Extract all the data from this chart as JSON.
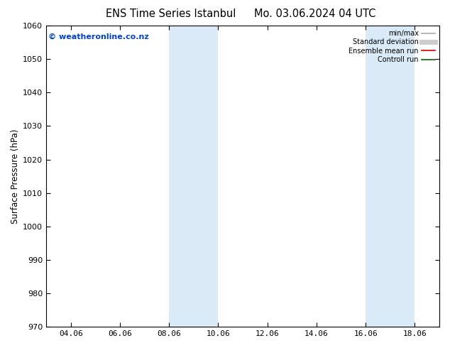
{
  "title_left": "ENS Time Series Istanbul",
  "title_right": "Mo. 03.06.2024 04 UTC",
  "ylabel": "Surface Pressure (hPa)",
  "ylim": [
    970,
    1060
  ],
  "yticks": [
    970,
    980,
    990,
    1000,
    1010,
    1020,
    1030,
    1040,
    1050,
    1060
  ],
  "xtick_labels": [
    "04.06",
    "06.06",
    "08.06",
    "10.06",
    "12.06",
    "14.06",
    "16.06",
    "18.06"
  ],
  "xtick_positions": [
    1,
    3,
    5,
    7,
    9,
    11,
    13,
    15
  ],
  "x_min": 0,
  "x_max": 16,
  "shaded_bands": [
    {
      "x_start": 5,
      "x_end": 7
    },
    {
      "x_start": 13,
      "x_end": 15
    }
  ],
  "shaded_color": "#daeaf7",
  "watermark": "© weatheronline.co.nz",
  "watermark_color": "#0044cc",
  "legend_items": [
    {
      "label": "min/max",
      "color": "#aaaaaa",
      "lw": 1.2,
      "ls": "-"
    },
    {
      "label": "Standard deviation",
      "color": "#cccccc",
      "lw": 5,
      "ls": "-"
    },
    {
      "label": "Ensemble mean run",
      "color": "#cc0000",
      "lw": 1.2,
      "ls": "-"
    },
    {
      "label": "Controll run",
      "color": "#006600",
      "lw": 1.2,
      "ls": "-"
    }
  ],
  "bg_color": "#ffffff",
  "plot_bg_color": "#ffffff",
  "title_fontsize": 10.5,
  "tick_fontsize": 8,
  "ylabel_fontsize": 8.5,
  "watermark_fontsize": 8
}
